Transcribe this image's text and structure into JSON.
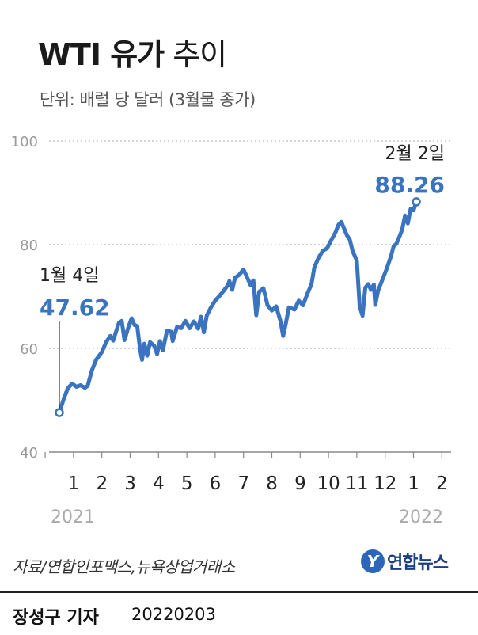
{
  "header": {
    "title_bold": "WTI 유가",
    "title_normal": "추이",
    "subtitle": "단위: 배럴 당 달러 (3월물 종가)"
  },
  "colors": {
    "line": "#3a73c0",
    "axis": "#888888",
    "grid": "#bbbbbb",
    "year_label": "#aaaaaa"
  },
  "chart_data": {
    "type": "line",
    "title": "WTI 유가 추이",
    "ylabel": "단위: 배럴 당 달러 (3월물 종가)",
    "ylim": [
      40,
      100
    ],
    "yticks": [
      40,
      60,
      80,
      100
    ],
    "xlim": [
      0,
      13.2
    ],
    "x_tick_labels": [
      "1",
      "2",
      "3",
      "4",
      "5",
      "6",
      "7",
      "8",
      "9",
      "10",
      "11",
      "12",
      "1",
      "2"
    ],
    "year_labels": [
      "2021",
      "2022"
    ],
    "grid": true,
    "series": [
      {
        "values": [
          [
            0.0,
            47.62
          ],
          [
            0.15,
            50.2
          ],
          [
            0.3,
            52.3
          ],
          [
            0.45,
            53.2
          ],
          [
            0.6,
            52.6
          ],
          [
            0.75,
            52.9
          ],
          [
            0.9,
            52.4
          ],
          [
            1.0,
            52.8
          ],
          [
            1.15,
            55.8
          ],
          [
            1.3,
            57.8
          ],
          [
            1.5,
            59.3
          ],
          [
            1.65,
            61.2
          ],
          [
            1.8,
            62.4
          ],
          [
            1.9,
            61.5
          ],
          [
            2.0,
            63.2
          ],
          [
            2.1,
            64.9
          ],
          [
            2.2,
            65.3
          ],
          [
            2.3,
            61.6
          ],
          [
            2.4,
            63.4
          ],
          [
            2.45,
            64.3
          ],
          [
            2.55,
            65.8
          ],
          [
            2.65,
            64.5
          ],
          [
            2.75,
            64.3
          ],
          [
            2.85,
            59.8
          ],
          [
            2.92,
            57.8
          ],
          [
            3.0,
            60.9
          ],
          [
            3.1,
            58.6
          ],
          [
            3.2,
            61.2
          ],
          [
            3.35,
            60.5
          ],
          [
            3.45,
            58.9
          ],
          [
            3.55,
            61.4
          ],
          [
            3.65,
            59.6
          ],
          [
            3.8,
            63.4
          ],
          [
            3.95,
            63.2
          ],
          [
            4.0,
            61.4
          ],
          [
            4.15,
            64.1
          ],
          [
            4.3,
            63.9
          ],
          [
            4.45,
            65.3
          ],
          [
            4.6,
            63.9
          ],
          [
            4.75,
            65.2
          ],
          [
            4.9,
            63.8
          ],
          [
            5.0,
            66.1
          ],
          [
            5.1,
            63.1
          ],
          [
            5.2,
            66.3
          ],
          [
            5.35,
            67.9
          ],
          [
            5.5,
            69.2
          ],
          [
            5.65,
            70.1
          ],
          [
            5.8,
            71.1
          ],
          [
            5.95,
            72.2
          ],
          [
            6.0,
            73.0
          ],
          [
            6.1,
            71.3
          ],
          [
            6.2,
            73.6
          ],
          [
            6.35,
            74.2
          ],
          [
            6.5,
            75.2
          ],
          [
            6.65,
            73.4
          ],
          [
            6.75,
            72.2
          ],
          [
            6.85,
            73.1
          ],
          [
            6.95,
            66.4
          ],
          [
            7.05,
            70.9
          ],
          [
            7.2,
            71.6
          ],
          [
            7.35,
            68.3
          ],
          [
            7.5,
            67.3
          ],
          [
            7.65,
            68.1
          ],
          [
            7.8,
            65.4
          ],
          [
            7.9,
            62.4
          ],
          [
            8.0,
            65.0
          ],
          [
            8.1,
            67.9
          ],
          [
            8.3,
            67.5
          ],
          [
            8.45,
            69.2
          ],
          [
            8.6,
            68.3
          ],
          [
            8.75,
            70.5
          ],
          [
            8.9,
            72.4
          ],
          [
            9.0,
            75.6
          ],
          [
            9.15,
            77.5
          ],
          [
            9.3,
            78.8
          ],
          [
            9.45,
            79.3
          ],
          [
            9.6,
            80.9
          ],
          [
            9.75,
            82.4
          ],
          [
            9.85,
            83.8
          ],
          [
            9.95,
            84.4
          ],
          [
            10.05,
            83.1
          ],
          [
            10.15,
            81.8
          ],
          [
            10.25,
            81.0
          ],
          [
            10.35,
            78.8
          ],
          [
            10.5,
            76.9
          ],
          [
            10.6,
            68.1
          ],
          [
            10.7,
            66.3
          ],
          [
            10.8,
            71.7
          ],
          [
            10.9,
            72.4
          ],
          [
            11.0,
            71.3
          ],
          [
            11.1,
            72.3
          ],
          [
            11.15,
            68.4
          ],
          [
            11.25,
            71.1
          ],
          [
            11.4,
            73.2
          ],
          [
            11.55,
            75.3
          ],
          [
            11.7,
            77.7
          ],
          [
            11.8,
            79.7
          ],
          [
            11.9,
            80.2
          ],
          [
            12.0,
            81.5
          ],
          [
            12.1,
            82.9
          ],
          [
            12.2,
            85.6
          ],
          [
            12.3,
            84.1
          ],
          [
            12.4,
            86.9
          ],
          [
            12.5,
            86.6
          ],
          [
            12.6,
            88.26
          ]
        ]
      }
    ],
    "annotations": [
      {
        "x": 0.0,
        "y": 47.62,
        "date": "1월 4일",
        "value": "47.62"
      },
      {
        "x": 12.6,
        "y": 88.26,
        "date": "2월 2일",
        "value": "88.26"
      }
    ]
  },
  "source": "자료/연합인포맥스,뉴욕상업거래소",
  "logo": {
    "mark": "Y",
    "text": "연합뉴스"
  },
  "footer": {
    "reporter": "장성구 기자",
    "date": "20220203"
  }
}
